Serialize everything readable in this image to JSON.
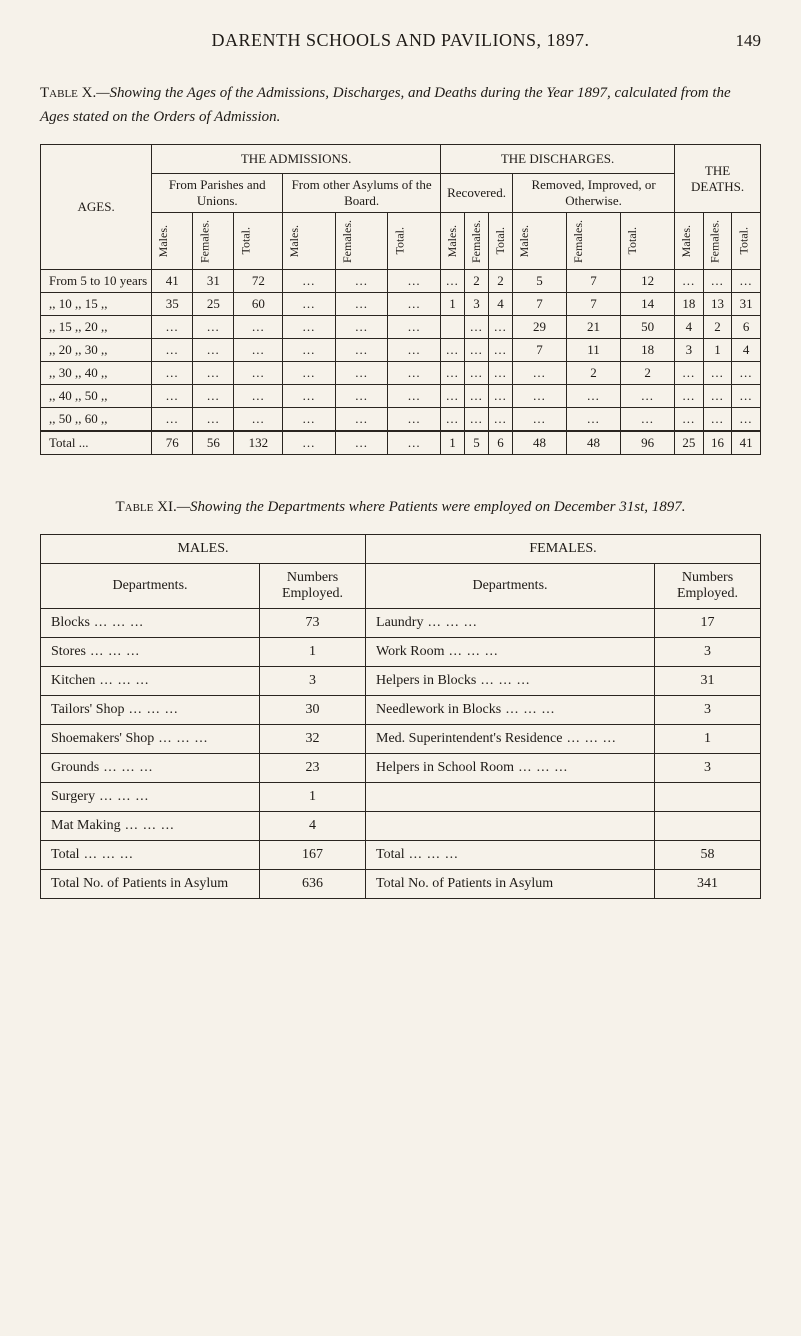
{
  "page": {
    "title": "DARENTH SCHOOLS AND PAVILIONS, 1897.",
    "number": "149"
  },
  "tableX": {
    "caption_leader": "Table X.",
    "caption": "—Showing the Ages of the Admissions, Discharges, and Deaths during the Year 1897, calculated from the Ages stated on the Orders of Admission.",
    "headers": {
      "ages": "AGES.",
      "admissions": "THE ADMISSIONS.",
      "discharges": "THE DISCHARGES.",
      "deaths": "THE DEATHS.",
      "from_parishes": "From Parishes and Unions.",
      "from_other": "From other Asylums of the Board.",
      "recovered": "Recovered.",
      "removed": "Removed, Improved, or Otherwise.",
      "males": "Males.",
      "females": "Females.",
      "total": "Total."
    },
    "rows": [
      {
        "label": "From  5 to 10 years",
        "cells": [
          "41",
          "31",
          "72",
          "...",
          "...",
          "...",
          "...",
          "2",
          "2",
          "5",
          "7",
          "12",
          "...",
          "...",
          "..."
        ]
      },
      {
        "label": ",,  10  ,,  15    ,,",
        "cells": [
          "35",
          "25",
          "60",
          "...",
          "...",
          "...",
          "1",
          "3",
          "4",
          "7",
          "7",
          "14",
          "18",
          "13",
          "31"
        ]
      },
      {
        "label": ",,  15  ,,  20    ,,",
        "cells": [
          "...",
          "...",
          "...",
          "...",
          "...",
          "...",
          "",
          "...",
          "...",
          "29",
          "21",
          "50",
          "4",
          "2",
          "6"
        ]
      },
      {
        "label": ",,  20  ,,  30    ,,",
        "cells": [
          "...",
          "...",
          "...",
          "...",
          "...",
          "...",
          "...",
          "...",
          "...",
          "7",
          "11",
          "18",
          "3",
          "1",
          "4"
        ]
      },
      {
        "label": ",,  30  ,,  40    ,,",
        "cells": [
          "...",
          "...",
          "...",
          "...",
          "...",
          "...",
          "...",
          "...",
          "...",
          "...",
          "2",
          "2",
          "...",
          "...",
          "..."
        ]
      },
      {
        "label": ",,  40  ,,  50    ,,",
        "cells": [
          "...",
          "...",
          "...",
          "...",
          "...",
          "...",
          "...",
          "...",
          "...",
          "...",
          "...",
          "...",
          "...",
          "...",
          "..."
        ]
      },
      {
        "label": ",,  50  ,,  60    ,,",
        "cells": [
          "...",
          "...",
          "...",
          "...",
          "...",
          "...",
          "...",
          "...",
          "...",
          "...",
          "...",
          "...",
          "...",
          "...",
          "..."
        ]
      }
    ],
    "total_row": {
      "label": "Total      ...",
      "cells": [
        "76",
        "56",
        "132",
        "...",
        "...",
        "...",
        "1",
        "5",
        "6",
        "48",
        "48",
        "96",
        "25",
        "16",
        "41"
      ]
    },
    "styling": {
      "border_color": "#2a2520",
      "background_color": "#f6f2ea",
      "font_size_body": 13,
      "font_size_header": 13
    }
  },
  "tableXI": {
    "caption_leader": "Table XI.",
    "caption": "—Showing the Departments where Patients were employed on December 31st, 1897.",
    "headers": {
      "males": "MALES.",
      "females": "FEMALES.",
      "departments": "Departments.",
      "numbers": "Numbers Employed."
    },
    "male_rows": [
      {
        "dept": "Blocks",
        "num": "73"
      },
      {
        "dept": "Stores",
        "num": "1"
      },
      {
        "dept": "Kitchen",
        "num": "3"
      },
      {
        "dept": "Tailors' Shop",
        "num": "30"
      },
      {
        "dept": "Shoemakers' Shop",
        "num": "32"
      },
      {
        "dept": "Grounds",
        "num": "23"
      },
      {
        "dept": "Surgery",
        "num": "1"
      },
      {
        "dept": "Mat Making",
        "num": "4"
      }
    ],
    "female_rows": [
      {
        "dept": "Laundry",
        "num": "17"
      },
      {
        "dept": "Work Room",
        "num": "3"
      },
      {
        "dept": "Helpers in Blocks",
        "num": "31"
      },
      {
        "dept": "Needlework in Blocks",
        "num": "3"
      },
      {
        "dept": "Med. Superintendent's Residence",
        "num": "1"
      },
      {
        "dept": "Helpers in School Room",
        "num": "3"
      },
      {
        "dept": "",
        "num": ""
      },
      {
        "dept": "",
        "num": ""
      }
    ],
    "totals": {
      "male_label": "Total",
      "male_num": "167",
      "female_label": "Total",
      "female_num": "58"
    },
    "grand": {
      "male_label": "Total No. of Patients in Asylum",
      "male_num": "636",
      "female_label": "Total No. of Patients in Asylum",
      "female_num": "341"
    },
    "styling": {
      "border_color": "#2a2520",
      "font_size_body": 14
    }
  }
}
